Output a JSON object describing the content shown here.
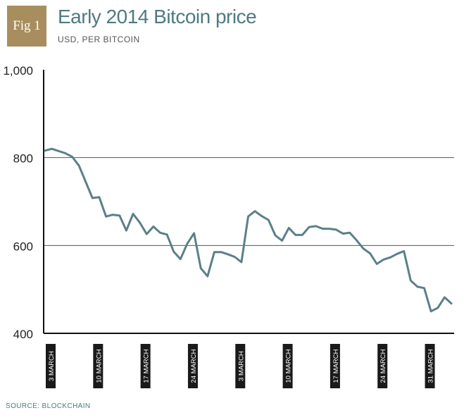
{
  "figure": {
    "badge": "Fig 1",
    "title": "Early 2014 Bitcoin price",
    "subtitle": "USD, PER BITCOIN",
    "source": "SOURCE: BLOCKCHAIN"
  },
  "colors": {
    "badge": "#a88e5e",
    "title": "#4f7a82",
    "line": "#5b8088",
    "tick_label_bg": "#1a1a1a"
  },
  "chart_data": {
    "type": "line",
    "title": "Early 2014 Bitcoin price",
    "subtitle": "USD, PER BITCOIN",
    "ylabel": "",
    "xlabel": "",
    "ylim": [
      400,
      1000
    ],
    "yticks": [
      "1,000",
      "800",
      "600",
      "400"
    ],
    "ytick_values": [
      1000,
      800,
      600,
      400
    ],
    "grid": true,
    "x_tick_labels": [
      "3 MARCH",
      "10 MARCH",
      "17 MARCH",
      "24 MARCH",
      "3 MARCH",
      "10 MARCH",
      "17 MARCH",
      "24 MARCH",
      "31 MARCH"
    ],
    "x_tick_index": [
      0,
      7,
      14,
      21,
      28,
      35,
      42,
      49,
      56
    ],
    "series": [
      {
        "values": [
          816,
          820,
          815,
          810,
          802,
          782,
          745,
          708,
          710,
          666,
          670,
          668,
          634,
          672,
          652,
          626,
          643,
          629,
          625,
          586,
          569,
          604,
          628,
          548,
          530,
          585,
          585,
          580,
          574,
          562,
          666,
          678,
          667,
          658,
          623,
          611,
          640,
          624,
          624,
          642,
          644,
          638,
          638,
          636,
          627,
          629,
          612,
          593,
          582,
          558,
          568,
          573,
          581,
          587,
          520,
          506,
          503,
          450,
          458,
          482,
          468
        ]
      }
    ]
  }
}
